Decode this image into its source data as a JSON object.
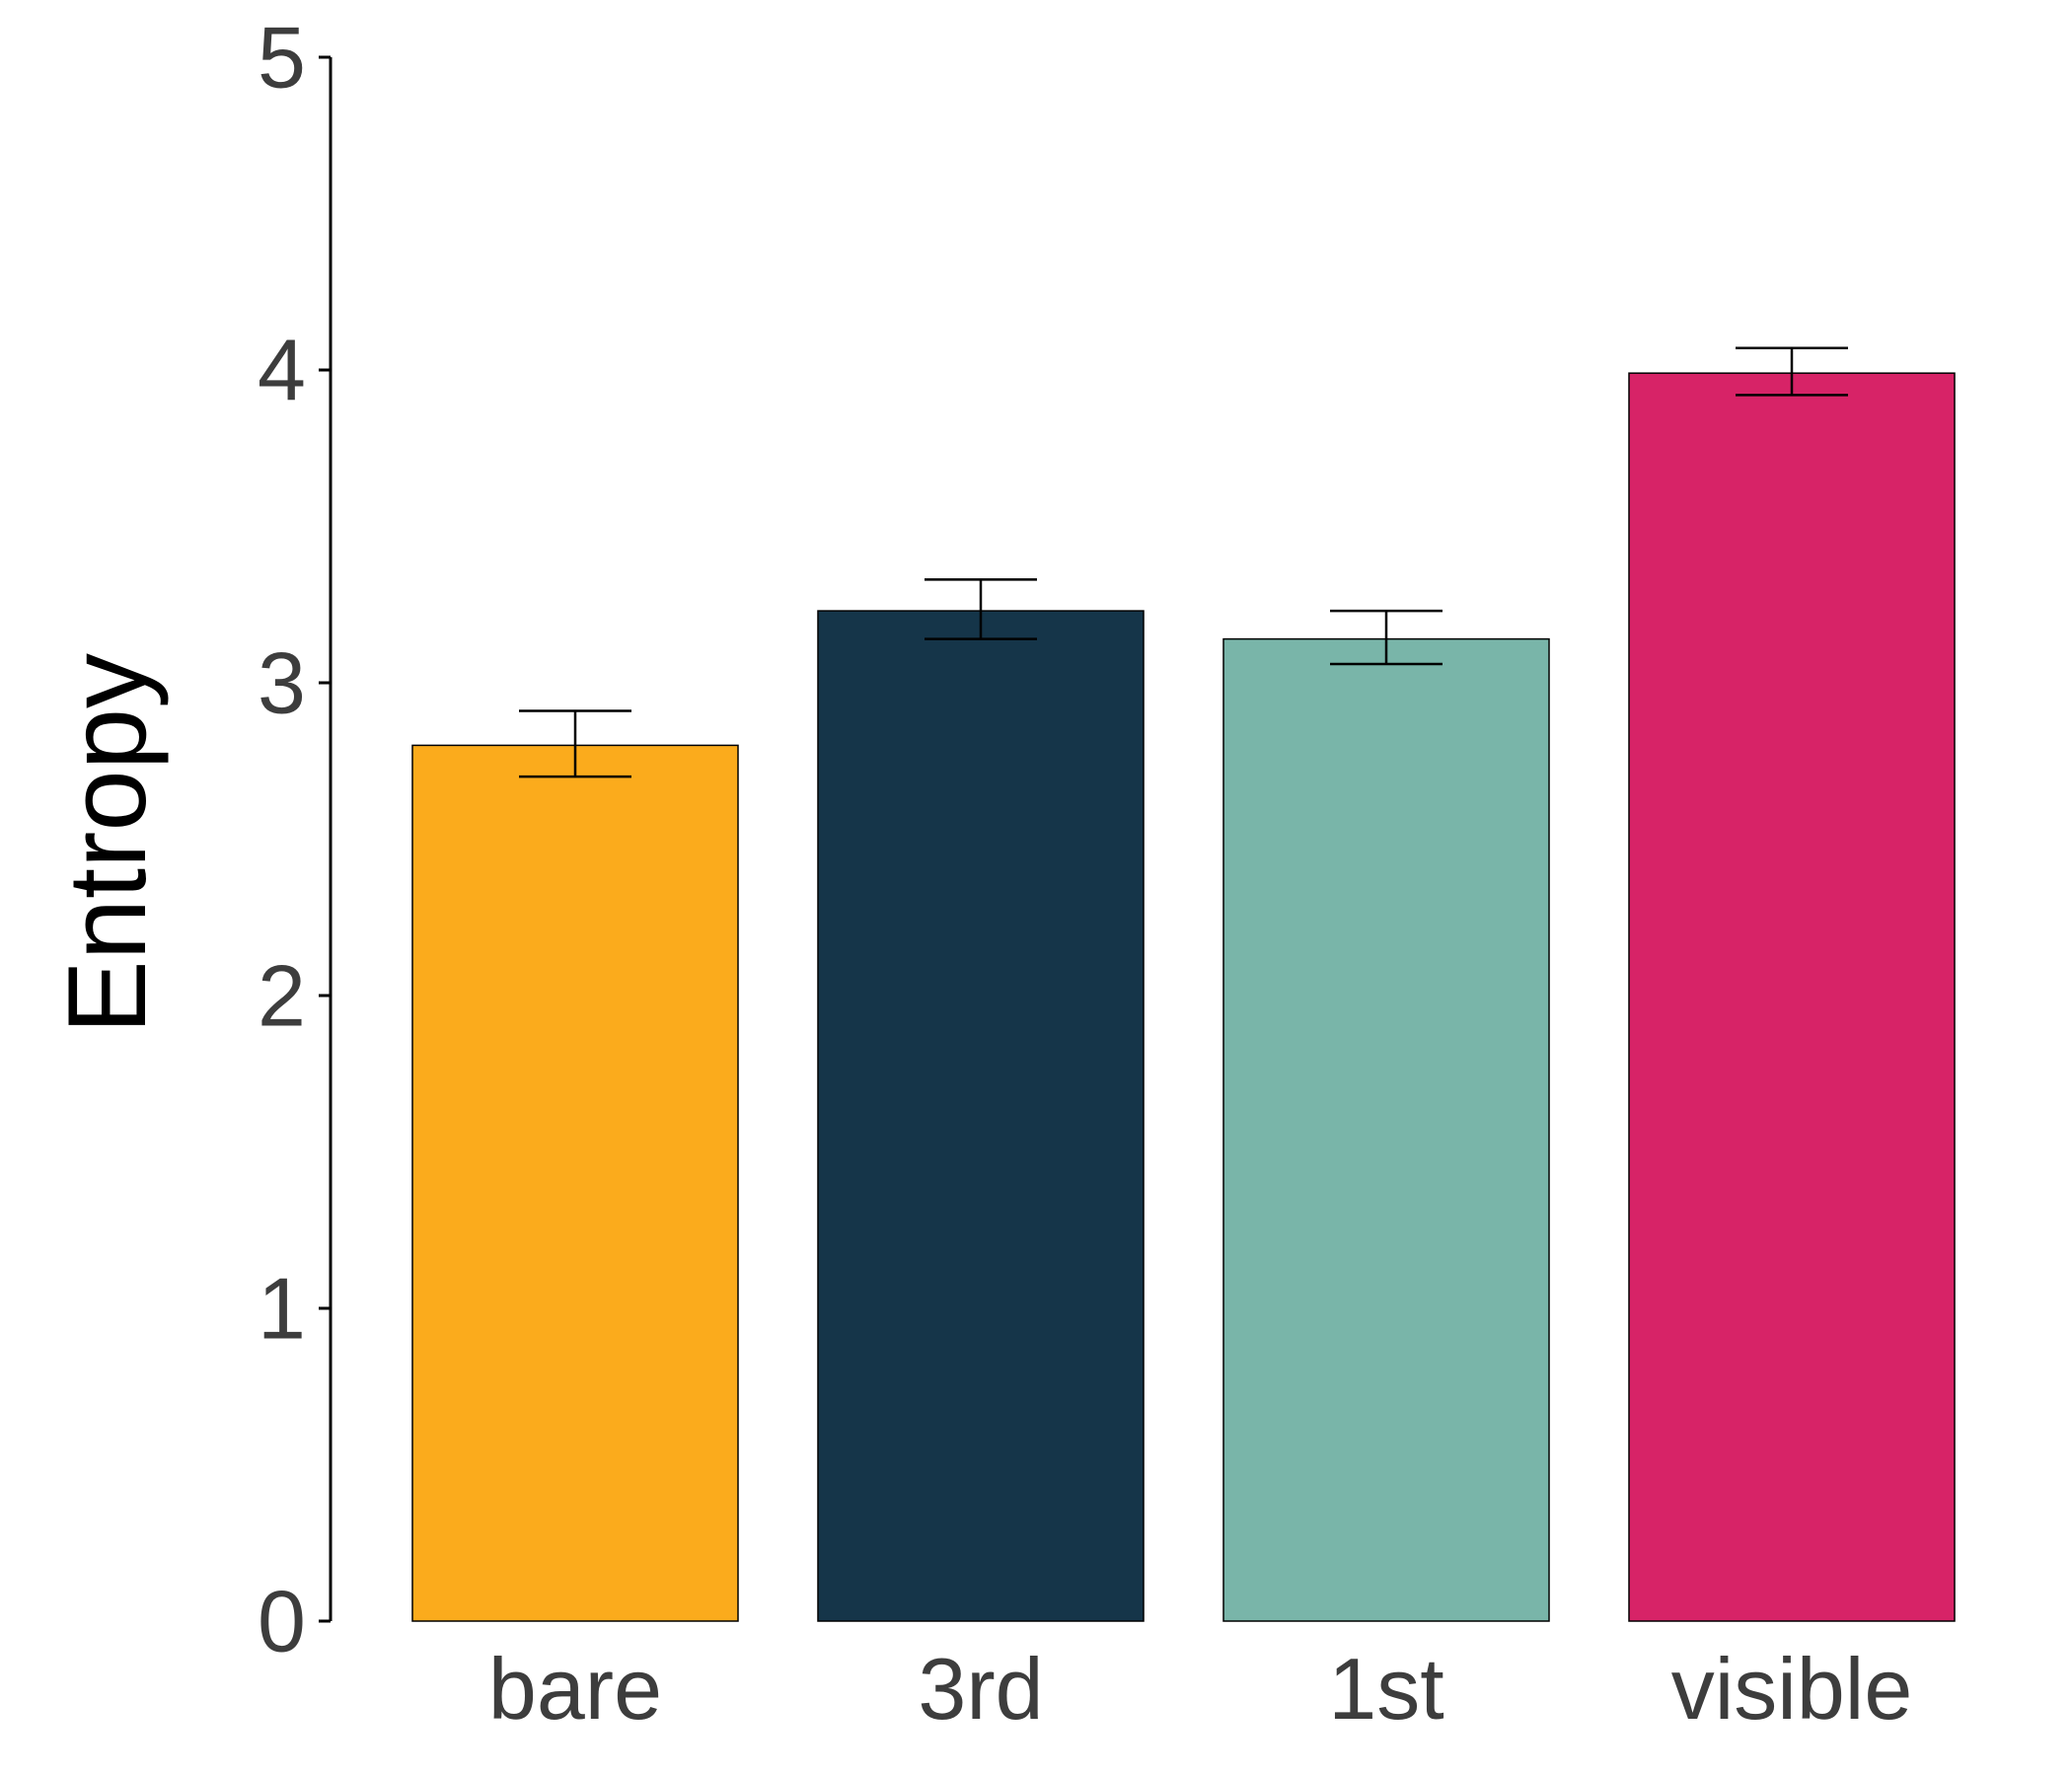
{
  "chart_data": {
    "type": "bar",
    "title": "",
    "xlabel": "",
    "ylabel": "Entropy",
    "ylim": [
      0,
      5
    ],
    "yticks": [
      "0",
      "1",
      "2",
      "3",
      "4",
      "5"
    ],
    "categories": [
      "bare",
      "3rd",
      "1st",
      "visible"
    ],
    "values": [
      2.8,
      3.23,
      3.14,
      3.99
    ],
    "error_low": [
      2.7,
      3.14,
      3.06,
      3.92
    ],
    "error_high": [
      2.91,
      3.33,
      3.23,
      4.07
    ],
    "colors": [
      "#fbab1c",
      "#153549",
      "#79b5a9",
      "#d72367"
    ],
    "grid": false,
    "legend": "none"
  }
}
